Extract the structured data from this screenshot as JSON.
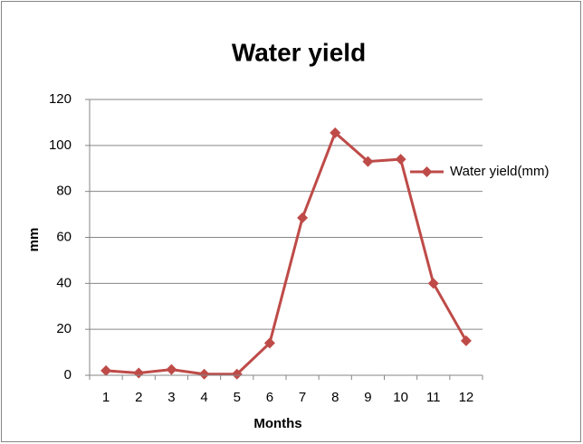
{
  "chart_data": {
    "type": "line",
    "title": "Water yield",
    "x_label": "Months",
    "y_label": "mm",
    "categories": [
      "1",
      "2",
      "3",
      "4",
      "5",
      "6",
      "7",
      "8",
      "9",
      "10",
      "11",
      "12"
    ],
    "series": [
      {
        "name": "Water yield(mm)",
        "color": "#be4b48",
        "values": [
          2,
          1,
          2.5,
          0.5,
          0.5,
          14,
          68.5,
          105.5,
          93,
          94,
          40,
          15
        ]
      }
    ],
    "ylim": [
      0,
      120
    ],
    "yticks": [
      0,
      20,
      40,
      60,
      80,
      100,
      120
    ],
    "grid": true,
    "legend": "right"
  }
}
